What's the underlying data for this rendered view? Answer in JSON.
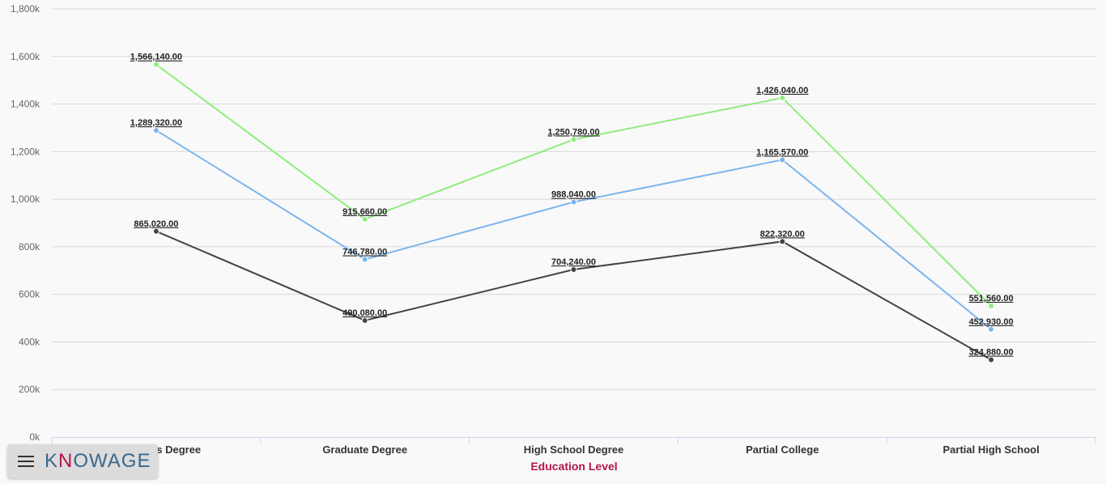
{
  "chart_data": {
    "type": "line",
    "categories": [
      "Bachelors Degree",
      "Graduate Degree",
      "High School Degree",
      "Partial College",
      "Partial High School"
    ],
    "series": [
      {
        "color": "#90ed7d",
        "values": [
          1566140,
          915660,
          1250780,
          1426040,
          551560
        ]
      },
      {
        "color": "#7cb5ec",
        "values": [
          1289320,
          746780,
          988040,
          1165570,
          452930
        ]
      },
      {
        "color": "#434348",
        "values": [
          865020,
          490080,
          704240,
          822320,
          324880
        ]
      }
    ],
    "data_labels": [
      [
        "1,566,140.00",
        "915,660.00",
        "1,250,780.00",
        "1,426,040.00",
        "551,560.00"
      ],
      [
        "1,289,320.00",
        "746,780.00",
        "988,040.00",
        "1,165,570.00",
        "452,930.00"
      ],
      [
        "865,020.00",
        "490,080.00",
        "704,240.00",
        "822,320.00",
        "324,880.00"
      ]
    ],
    "y_ticks": [
      0,
      200000,
      400000,
      600000,
      800000,
      1000000,
      1200000,
      1400000,
      1600000,
      1800000
    ],
    "y_tick_labels": [
      "0k",
      "200k",
      "400k",
      "600k",
      "800k",
      "1,000k",
      "1,200k",
      "1,400k",
      "1,600k",
      "1,800k"
    ],
    "ylim": [
      0,
      1800000
    ],
    "title": "",
    "xlabel": "Education Level",
    "ylabel": "",
    "grid": true,
    "legend": false
  },
  "toolbar": {
    "brand_part1": "K",
    "brand_part2": "N",
    "brand_part3": "OWAGE",
    "menu_icon": "hamburger-menu-icon"
  }
}
